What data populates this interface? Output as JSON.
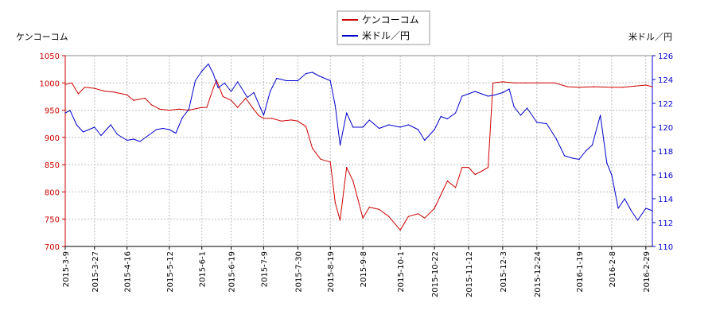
{
  "chart_data": {
    "type": "line",
    "left_axis_label": "ケンコーコム",
    "right_axis_label": "米ドル／円",
    "legend": [
      "ケンコーコム",
      "米ドル／円"
    ],
    "legend_position": "top-center",
    "grid": true,
    "y_left": {
      "range": [
        700,
        1050
      ],
      "ticks": [
        700,
        750,
        800,
        850,
        900,
        950,
        1000,
        1050
      ],
      "color": "#cc0000"
    },
    "y_right": {
      "range": [
        110,
        126
      ],
      "ticks": [
        110,
        112,
        114,
        116,
        118,
        120,
        122,
        124,
        126
      ],
      "color": "#0000cc"
    },
    "x_dates": [
      "2015-3-9",
      "2015-3-27",
      "2015-4-16",
      "2015-5-12",
      "2015-6-1",
      "2015-6-19",
      "2015-7-9",
      "2015-7-30",
      "2015-8-19",
      "2015-9-8",
      "2015-10-1",
      "2015-10-22",
      "2015-11-12",
      "2015-12-3",
      "2015-12-24",
      "2016-1-19",
      "2016-2-8",
      "2016-2-29"
    ],
    "series": [
      {
        "name": "ケンコーコム",
        "color": "#cc0000",
        "axis": "left",
        "points": [
          [
            "2015-3-9",
            997
          ],
          [
            "2015-3-13",
            1000
          ],
          [
            "2015-3-17",
            980
          ],
          [
            "2015-3-21",
            992
          ],
          [
            "2015-3-27",
            990
          ],
          [
            "2015-4-2",
            985
          ],
          [
            "2015-4-8",
            983
          ],
          [
            "2015-4-16",
            978
          ],
          [
            "2015-4-20",
            968
          ],
          [
            "2015-4-27",
            972
          ],
          [
            "2015-5-1",
            960
          ],
          [
            "2015-5-6",
            952
          ],
          [
            "2015-5-12",
            950
          ],
          [
            "2015-5-18",
            952
          ],
          [
            "2015-5-24",
            950
          ],
          [
            "2015-6-1",
            955
          ],
          [
            "2015-6-4",
            955
          ],
          [
            "2015-6-8",
            990
          ],
          [
            "2015-6-10",
            1005
          ],
          [
            "2015-6-14",
            975
          ],
          [
            "2015-6-19",
            968
          ],
          [
            "2015-6-23",
            955
          ],
          [
            "2015-6-28",
            972
          ],
          [
            "2015-7-2",
            955
          ],
          [
            "2015-7-6",
            940
          ],
          [
            "2015-7-9",
            935
          ],
          [
            "2015-7-14",
            935
          ],
          [
            "2015-7-20",
            930
          ],
          [
            "2015-7-26",
            932
          ],
          [
            "2015-7-30",
            930
          ],
          [
            "2015-8-4",
            920
          ],
          [
            "2015-8-8",
            880
          ],
          [
            "2015-8-13",
            860
          ],
          [
            "2015-8-19",
            855
          ],
          [
            "2015-8-22",
            780
          ],
          [
            "2015-8-25",
            748
          ],
          [
            "2015-8-29",
            845
          ],
          [
            "2015-9-2",
            820
          ],
          [
            "2015-9-8",
            752
          ],
          [
            "2015-9-12",
            772
          ],
          [
            "2015-9-18",
            768
          ],
          [
            "2015-9-24",
            755
          ],
          [
            "2015-10-1",
            730
          ],
          [
            "2015-10-6",
            755
          ],
          [
            "2015-10-12",
            760
          ],
          [
            "2015-10-16",
            752
          ],
          [
            "2015-10-22",
            770
          ],
          [
            "2015-10-26",
            795
          ],
          [
            "2015-10-30",
            820
          ],
          [
            "2015-11-4",
            808
          ],
          [
            "2015-11-8",
            845
          ],
          [
            "2015-11-12",
            845
          ],
          [
            "2015-11-16",
            832
          ],
          [
            "2015-11-20",
            838
          ],
          [
            "2015-11-24",
            845
          ],
          [
            "2015-11-27",
            1000
          ],
          [
            "2015-12-3",
            1002
          ],
          [
            "2015-12-10",
            1000
          ],
          [
            "2015-12-17",
            1000
          ],
          [
            "2015-12-24",
            1000
          ],
          [
            "2016-1-4",
            1000
          ],
          [
            "2016-1-12",
            993
          ],
          [
            "2016-1-19",
            992
          ],
          [
            "2016-1-28",
            993
          ],
          [
            "2016-2-8",
            992
          ],
          [
            "2016-2-15",
            992
          ],
          [
            "2016-2-22",
            994
          ],
          [
            "2016-2-29",
            996
          ],
          [
            "2016-3-4",
            993
          ]
        ]
      },
      {
        "name": "米ドル／円",
        "color": "#0000cc",
        "axis": "right",
        "points": [
          [
            "2015-3-9",
            121.2
          ],
          [
            "2015-3-12",
            121.4
          ],
          [
            "2015-3-16",
            120.2
          ],
          [
            "2015-3-20",
            119.6
          ],
          [
            "2015-3-27",
            120.0
          ],
          [
            "2015-3-31",
            119.3
          ],
          [
            "2015-4-6",
            120.2
          ],
          [
            "2015-4-10",
            119.4
          ],
          [
            "2015-4-16",
            118.9
          ],
          [
            "2015-4-20",
            119.0
          ],
          [
            "2015-4-24",
            118.8
          ],
          [
            "2015-4-28",
            119.2
          ],
          [
            "2015-5-4",
            119.8
          ],
          [
            "2015-5-8",
            119.9
          ],
          [
            "2015-5-12",
            119.8
          ],
          [
            "2015-5-16",
            119.5
          ],
          [
            "2015-5-20",
            120.8
          ],
          [
            "2015-5-24",
            121.5
          ],
          [
            "2015-5-28",
            123.9
          ],
          [
            "2015-6-1",
            124.7
          ],
          [
            "2015-6-5",
            125.3
          ],
          [
            "2015-6-8",
            124.5
          ],
          [
            "2015-6-11",
            123.3
          ],
          [
            "2015-6-15",
            123.7
          ],
          [
            "2015-6-19",
            123.0
          ],
          [
            "2015-6-23",
            123.8
          ],
          [
            "2015-6-29",
            122.5
          ],
          [
            "2015-7-3",
            122.9
          ],
          [
            "2015-7-9",
            121.0
          ],
          [
            "2015-7-13",
            123.0
          ],
          [
            "2015-7-17",
            124.1
          ],
          [
            "2015-7-23",
            123.9
          ],
          [
            "2015-7-30",
            123.9
          ],
          [
            "2015-8-4",
            124.5
          ],
          [
            "2015-8-8",
            124.6
          ],
          [
            "2015-8-12",
            124.3
          ],
          [
            "2015-8-19",
            123.9
          ],
          [
            "2015-8-22",
            121.8
          ],
          [
            "2015-8-25",
            118.5
          ],
          [
            "2015-8-29",
            121.2
          ],
          [
            "2015-9-2",
            120.0
          ],
          [
            "2015-9-8",
            120.0
          ],
          [
            "2015-9-12",
            120.6
          ],
          [
            "2015-9-18",
            119.9
          ],
          [
            "2015-9-24",
            120.2
          ],
          [
            "2015-10-1",
            120.0
          ],
          [
            "2015-10-6",
            120.2
          ],
          [
            "2015-10-12",
            119.8
          ],
          [
            "2015-10-16",
            118.9
          ],
          [
            "2015-10-22",
            119.8
          ],
          [
            "2015-10-26",
            120.9
          ],
          [
            "2015-10-30",
            120.7
          ],
          [
            "2015-11-4",
            121.2
          ],
          [
            "2015-11-8",
            122.6
          ],
          [
            "2015-11-12",
            122.8
          ],
          [
            "2015-11-16",
            123.0
          ],
          [
            "2015-11-20",
            122.8
          ],
          [
            "2015-11-24",
            122.6
          ],
          [
            "2015-11-28",
            122.7
          ],
          [
            "2015-12-3",
            122.9
          ],
          [
            "2015-12-7",
            123.2
          ],
          [
            "2015-12-10",
            121.7
          ],
          [
            "2015-12-14",
            121.0
          ],
          [
            "2015-12-18",
            121.6
          ],
          [
            "2015-12-24",
            120.4
          ],
          [
            "2015-12-30",
            120.3
          ],
          [
            "2016-1-5",
            119.0
          ],
          [
            "2016-1-10",
            117.6
          ],
          [
            "2016-1-15",
            117.4
          ],
          [
            "2016-1-19",
            117.3
          ],
          [
            "2016-1-23",
            118.0
          ],
          [
            "2016-1-27",
            118.5
          ],
          [
            "2016-2-1",
            121.0
          ],
          [
            "2016-2-5",
            117.0
          ],
          [
            "2016-2-8",
            116.0
          ],
          [
            "2016-2-12",
            113.2
          ],
          [
            "2016-2-16",
            114.0
          ],
          [
            "2016-2-20",
            113.0
          ],
          [
            "2016-2-24",
            112.2
          ],
          [
            "2016-2-29",
            113.2
          ],
          [
            "2016-3-4",
            113.0
          ]
        ]
      }
    ]
  }
}
